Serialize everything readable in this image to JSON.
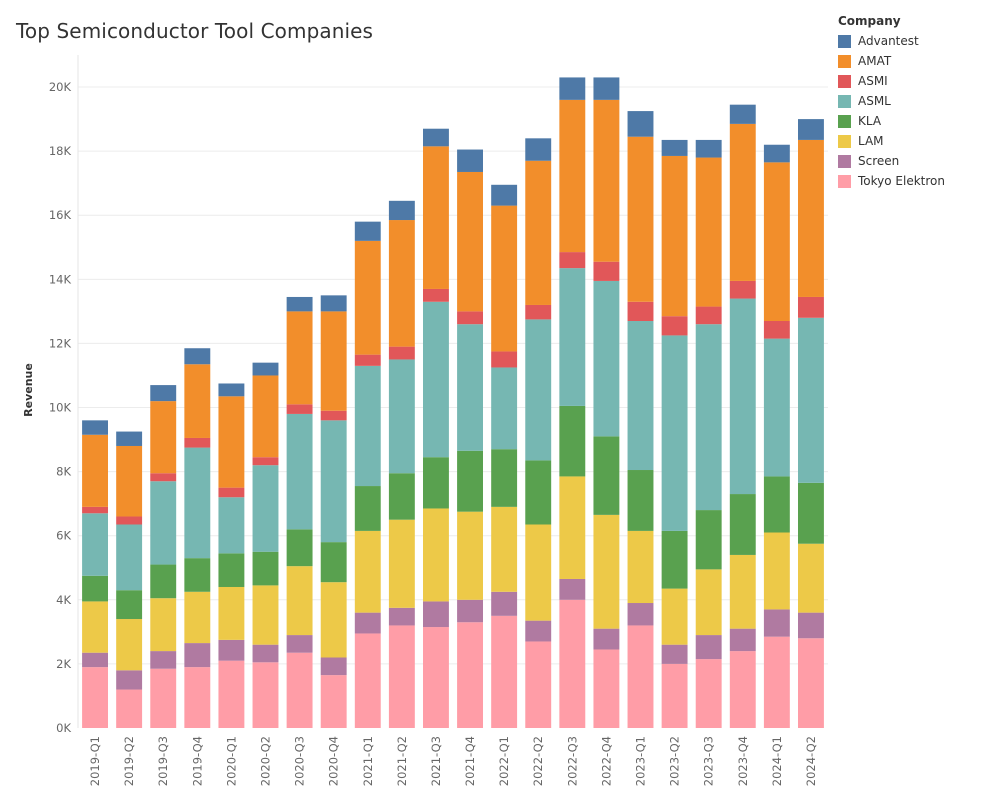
{
  "chart_data": {
    "type": "stacked-bar",
    "title": "Top Semiconductor Tool Companies",
    "xlabel": "",
    "ylabel": "Revenue",
    "ylim": [
      0,
      21000
    ],
    "yticks": [
      0,
      2000,
      4000,
      6000,
      8000,
      10000,
      12000,
      14000,
      16000,
      18000,
      20000
    ],
    "ytick_labels": [
      "0K",
      "2K",
      "4K",
      "6K",
      "8K",
      "10K",
      "12K",
      "14K",
      "16K",
      "18K",
      "20K"
    ],
    "legend_title": "Company",
    "legend_position": "top-right",
    "categories": [
      "2019-Q1",
      "2019-Q2",
      "2019-Q3",
      "2019-Q4",
      "2020-Q1",
      "2020-Q2",
      "2020-Q3",
      "2020-Q4",
      "2021-Q1",
      "2021-Q2",
      "2021-Q3",
      "2021-Q4",
      "2022-Q1",
      "2022-Q2",
      "2022-Q3",
      "2022-Q4",
      "2023-Q1",
      "2023-Q2",
      "2023-Q3",
      "2023-Q4",
      "2024-Q1",
      "2024-Q2"
    ],
    "stack_order": [
      "Tokyo Elektron",
      "Screen",
      "LAM",
      "KLA",
      "ASML",
      "ASMI",
      "AMAT",
      "Advantest"
    ],
    "series": [
      {
        "name": "Advantest",
        "color": "#4e79a7",
        "values": [
          450,
          450,
          500,
          500,
          400,
          400,
          450,
          500,
          600,
          600,
          550,
          700,
          650,
          700,
          700,
          700,
          800,
          500,
          550,
          600,
          550,
          650
        ]
      },
      {
        "name": "AMAT",
        "color": "#f28e2b",
        "values": [
          2250,
          2200,
          2250,
          2300,
          2850,
          2550,
          2900,
          3100,
          3550,
          3950,
          4450,
          4350,
          4550,
          4500,
          4750,
          5050,
          5150,
          5000,
          4650,
          4900,
          4950,
          4900
        ]
      },
      {
        "name": "ASMI",
        "color": "#e15759",
        "values": [
          200,
          250,
          250,
          300,
          300,
          250,
          300,
          300,
          350,
          400,
          400,
          400,
          500,
          450,
          500,
          600,
          600,
          600,
          550,
          550,
          550,
          650
        ]
      },
      {
        "name": "ASML",
        "color": "#76b7b2",
        "values": [
          1950,
          2050,
          2600,
          3450,
          1750,
          2700,
          3600,
          3800,
          3750,
          3550,
          4850,
          3950,
          2550,
          4400,
          4300,
          4850,
          4650,
          6100,
          5800,
          6100,
          4300,
          5150
        ]
      },
      {
        "name": "KLA",
        "color": "#59a14f",
        "values": [
          800,
          900,
          1050,
          1050,
          1050,
          1050,
          1150,
          1250,
          1400,
          1450,
          1600,
          1900,
          1800,
          2000,
          2200,
          2450,
          1900,
          1800,
          1850,
          1900,
          1750,
          1900
        ]
      },
      {
        "name": "LAM",
        "color": "#edc948",
        "values": [
          1600,
          1600,
          1650,
          1600,
          1650,
          1850,
          2150,
          2350,
          2550,
          2750,
          2900,
          2750,
          2650,
          3000,
          3200,
          3550,
          2250,
          1750,
          2050,
          2300,
          2400,
          2150
        ]
      },
      {
        "name": "Screen",
        "color": "#b07aa1",
        "values": [
          450,
          600,
          550,
          750,
          650,
          550,
          550,
          550,
          650,
          550,
          800,
          700,
          750,
          650,
          650,
          650,
          700,
          600,
          750,
          700,
          850,
          800
        ]
      },
      {
        "name": "Tokyo Elektron",
        "color": "#ff9da7",
        "values": [
          1900,
          1200,
          1850,
          1900,
          2100,
          2050,
          2350,
          1650,
          2950,
          3200,
          3150,
          3300,
          3500,
          2700,
          4000,
          2450,
          3200,
          2000,
          2150,
          2400,
          2850,
          2800
        ]
      }
    ]
  }
}
